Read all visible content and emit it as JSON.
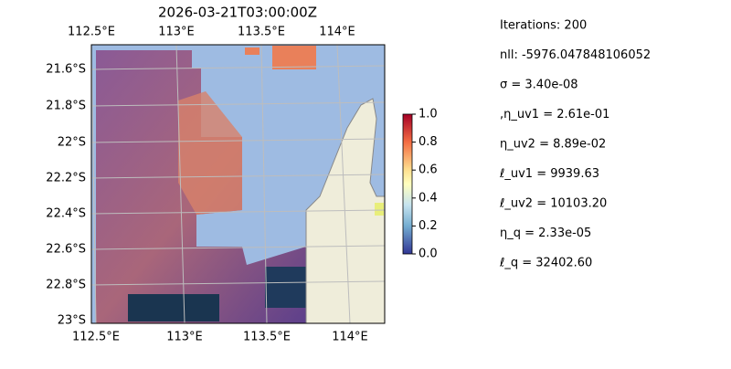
{
  "title": "2026-03-21T03:00:00Z",
  "top_ticks": [
    "112.5°E",
    "113°E",
    "113.5°E",
    "114°E"
  ],
  "bottom_ticks": [
    "112.5°E",
    "113°E",
    "113.5°E",
    "114°E"
  ],
  "left_ticks": [
    "21.6°S",
    "21.8°S",
    "22°S",
    "22.2°S",
    "22.4°S",
    "22.6°S",
    "22.8°S",
    "23°S"
  ],
  "colorbar": {
    "lim": [
      0,
      1
    ],
    "ticks": [
      {
        "value": 0,
        "label": "0.0"
      },
      0.2,
      0.4,
      0.6,
      0.8,
      {
        "value": 1,
        "label": "1.0"
      }
    ]
  },
  "stats": [
    "Iterations: 200",
    "nll: -5976.047848106052",
    "σ = 3.40e-08",
    ",η_uv1 = 2.61e-01",
    "η_uv2 = 8.89e-02",
    "ℓ_uv1 = 9939.63",
    "ℓ_uv2 = 10103.20",
    "η_q = 2.33e-05",
    "ℓ_q = 32402.60"
  ]
}
